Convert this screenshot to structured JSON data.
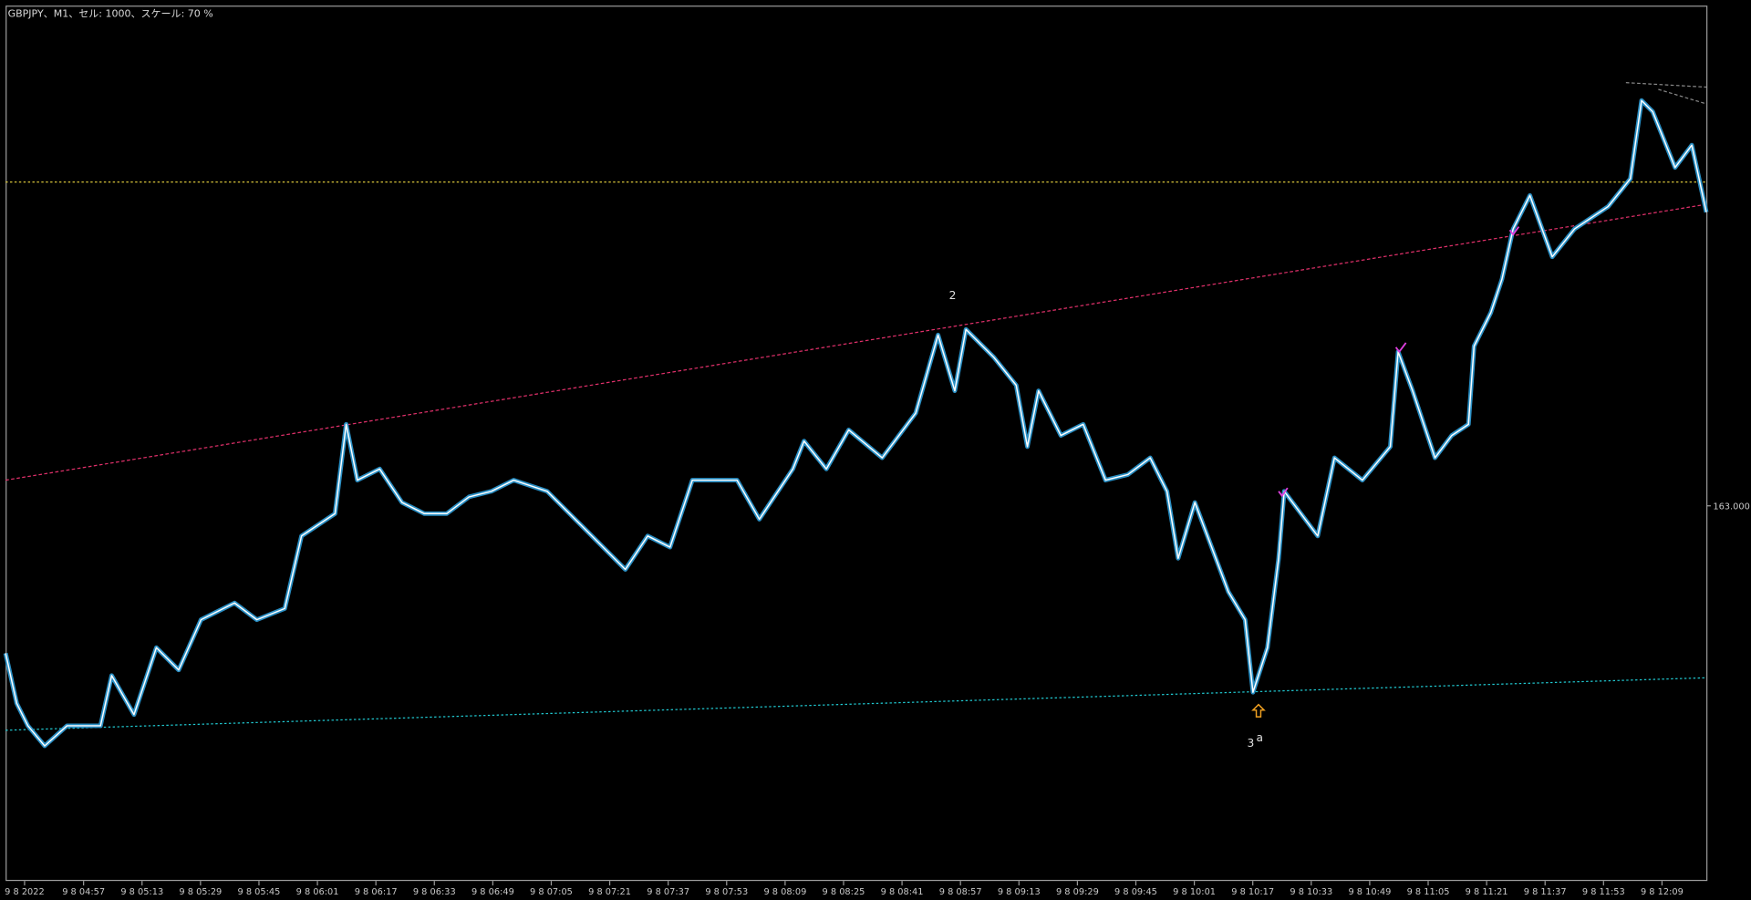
{
  "header": {
    "title": "GBPJPY、M1、セル: 1000、スケール: 70 %"
  },
  "y_axis": {
    "labels": [
      "163.000"
    ]
  },
  "x_axis": {
    "labels": [
      "9 8 2022",
      "9 8 04:57",
      "9 8 05:13",
      "9 8 05:29",
      "9 8 05:45",
      "9 8 06:01",
      "9 8 06:17",
      "9 8 06:33",
      "9 8 06:49",
      "9 8 07:05",
      "9 8 07:21",
      "9 8 07:37",
      "9 8 07:53",
      "9 8 08:09",
      "9 8 08:25",
      "9 8 08:41",
      "9 8 08:57",
      "9 8 09:13",
      "9 8 09:29",
      "9 8 09:45",
      "9 8 10:01",
      "9 8 10:17",
      "9 8 10:33",
      "9 8 10:49",
      "9 8 11:05",
      "9 8 11:21",
      "9 8 11:37",
      "9 8 11:53",
      "9 8 12:09"
    ]
  },
  "annotations": {
    "wave_2": "2",
    "wave_3": "3",
    "wave_3_sub": "a"
  }
}
